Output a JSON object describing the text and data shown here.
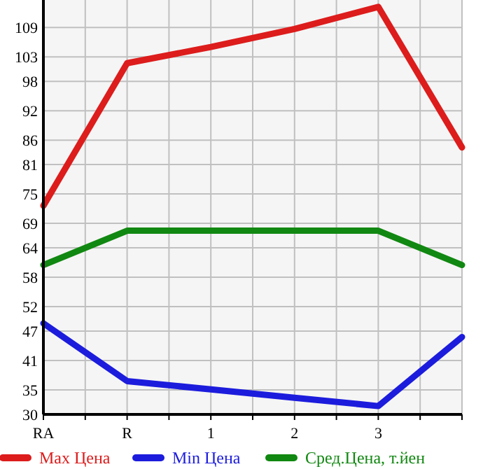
{
  "chart_data": {
    "type": "line",
    "categories": [
      "RA",
      "R",
      "1",
      "2",
      "3",
      null
    ],
    "series": [
      {
        "name": "Max Цена",
        "color": "#dd1c1c",
        "values": [
          72.6,
          101.7,
          105,
          108.7,
          113.2,
          84.5
        ]
      },
      {
        "name": "Min Цена",
        "color": "#1c1cdd",
        "values": [
          48.6,
          36.8,
          35.1,
          33.4,
          31.7,
          45.8
        ]
      },
      {
        "name": "Сред.Цена, т.йен",
        "color": "#118811",
        "values": [
          60.5,
          67.5,
          67.5,
          67.5,
          67.5,
          60.5
        ]
      }
    ],
    "ylim": [
      30,
      114.6
    ],
    "yticks": [
      30,
      35,
      41,
      47,
      52,
      58,
      64,
      69,
      75,
      81,
      86,
      92,
      98,
      103,
      109
    ],
    "grid": true,
    "legend": "bottom",
    "marker": "none",
    "line_style": "solid"
  }
}
